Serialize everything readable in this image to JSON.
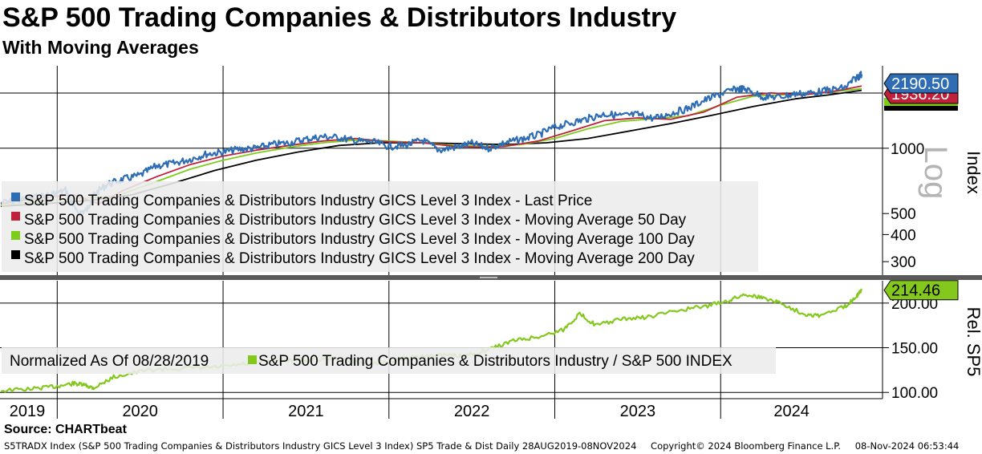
{
  "header": {
    "title": "S&P 500 Trading Companies & Distributors Industry",
    "subtitle": "With Moving Averages"
  },
  "source_label": "Source: CHARTbeat",
  "footer": {
    "ticker": "S5TRADX Index (S&P 500 Trading Companies & Distributors Industry GICS Level 3 Index) SP5 Trade & Dist  Daily 28AUG2019-08NOV2024",
    "copyright": "Copyright© 2024 Bloomberg Finance L.P.",
    "timestamp": "08-Nov-2024 06:53:44"
  },
  "colors": {
    "last_price": "#2e6db4",
    "ma50": "#c0203a",
    "ma100": "#7ccc1c",
    "ma200": "#000000",
    "relative": "#84c81e",
    "legend_bg": "#ececec"
  },
  "chart_data": [
    {
      "type": "line",
      "name": "upper-panel",
      "yscale": "log",
      "ylabel": "Index",
      "scale_label": "Log",
      "ylim": [
        260,
        2400
      ],
      "yticks": [
        300,
        400,
        500,
        1000
      ],
      "ytick_labels": [
        "300",
        "400",
        "500",
        "1000"
      ],
      "x_years": [
        "2019",
        "2020",
        "2021",
        "2022",
        "2023",
        "2024"
      ],
      "x_range": [
        2019.655,
        2024.855
      ],
      "grid": true,
      "legend": [
        "S&P 500 Trading Companies & Distributors Industry GICS Level 3 Index  - Last Price",
        "S&P 500 Trading Companies & Distributors Industry GICS Level 3 Index  - Moving Average 50 Day",
        "S&P 500 Trading Companies & Distributors Industry GICS Level 3 Index  - Moving Average 100 Day",
        "S&P 500 Trading Companies & Distributors Industry GICS Level 3 Index  - Moving Average 200 Day"
      ],
      "callouts": [
        {
          "value": 2190.5,
          "label": "2190.50",
          "series": "last_price"
        },
        {
          "value": 1936.2,
          "label": "1936.20",
          "series": "ma50"
        }
      ],
      "series": [
        {
          "name": "Last Price",
          "key": "last_price",
          "x": [
            2019.66,
            2019.8,
            2019.95,
            2020.05,
            2020.12,
            2020.18,
            2020.22,
            2020.3,
            2020.4,
            2020.5,
            2020.6,
            2020.7,
            2020.8,
            2020.9,
            2021.0,
            2021.1,
            2021.2,
            2021.3,
            2021.4,
            2021.5,
            2021.6,
            2021.7,
            2021.8,
            2021.9,
            2022.0,
            2022.1,
            2022.2,
            2022.3,
            2022.4,
            2022.5,
            2022.6,
            2022.7,
            2022.8,
            2022.9,
            2023.0,
            2023.1,
            2023.2,
            2023.3,
            2023.4,
            2023.5,
            2023.6,
            2023.7,
            2023.8,
            2023.9,
            2024.0,
            2024.1,
            2024.15,
            2024.25,
            2024.35,
            2024.45,
            2024.55,
            2024.65,
            2024.75,
            2024.82,
            2024.85
          ],
          "values": [
            560,
            580,
            610,
            640,
            500,
            520,
            610,
            680,
            720,
            750,
            830,
            850,
            890,
            940,
            960,
            990,
            1000,
            1040,
            1060,
            1100,
            1130,
            1120,
            1080,
            1070,
            1020,
            1030,
            1090,
            980,
            1010,
            1050,
            1000,
            1060,
            1100,
            1150,
            1250,
            1310,
            1370,
            1440,
            1410,
            1430,
            1370,
            1450,
            1520,
            1660,
            1780,
            1880,
            1870,
            1730,
            1720,
            1780,
            1800,
            1850,
            1900,
            2120,
            2190.5
          ]
        },
        {
          "name": "Moving Average 50 Day",
          "key": "ma50",
          "x": [
            2019.66,
            2019.9,
            2020.1,
            2020.25,
            2020.4,
            2020.6,
            2020.8,
            2021.0,
            2021.2,
            2021.4,
            2021.6,
            2021.8,
            2022.0,
            2022.2,
            2022.4,
            2022.55,
            2022.7,
            2022.9,
            2023.1,
            2023.3,
            2023.5,
            2023.7,
            2023.9,
            2024.1,
            2024.3,
            2024.5,
            2024.7,
            2024.85
          ],
          "values": [
            555,
            590,
            610,
            555,
            640,
            740,
            840,
            920,
            980,
            1030,
            1080,
            1110,
            1070,
            1060,
            1020,
            1010,
            1020,
            1080,
            1200,
            1340,
            1380,
            1360,
            1470,
            1720,
            1800,
            1760,
            1840,
            1936.2
          ]
        },
        {
          "name": "Moving Average 100 Day",
          "key": "ma100",
          "x": [
            2019.66,
            2019.95,
            2020.15,
            2020.35,
            2020.55,
            2020.8,
            2021.0,
            2021.2,
            2021.4,
            2021.6,
            2021.8,
            2022.0,
            2022.2,
            2022.4,
            2022.6,
            2022.8,
            2023.0,
            2023.2,
            2023.4,
            2023.6,
            2023.8,
            2024.0,
            2024.2,
            2024.4,
            2024.6,
            2024.85
          ],
          "values": [
            545,
            575,
            590,
            600,
            680,
            800,
            880,
            950,
            1010,
            1060,
            1090,
            1080,
            1060,
            1030,
            1020,
            1040,
            1110,
            1230,
            1330,
            1370,
            1410,
            1580,
            1740,
            1770,
            1800,
            1880
          ]
        },
        {
          "name": "Moving Average 200 Day",
          "key": "ma200",
          "x": [
            2019.66,
            2020.0,
            2020.2,
            2020.45,
            2020.7,
            2020.95,
            2021.2,
            2021.45,
            2021.7,
            2021.95,
            2022.2,
            2022.45,
            2022.7,
            2022.95,
            2023.2,
            2023.45,
            2023.7,
            2023.95,
            2024.2,
            2024.45,
            2024.65,
            2024.85
          ],
          "values": [
            540,
            560,
            575,
            610,
            690,
            790,
            880,
            960,
            1030,
            1060,
            1060,
            1050,
            1040,
            1060,
            1110,
            1200,
            1300,
            1420,
            1560,
            1690,
            1760,
            1850
          ]
        }
      ]
    },
    {
      "type": "line",
      "name": "lower-panel",
      "ylabel": "Rel. SP5",
      "ylim": [
        93,
        225
      ],
      "yticks": [
        100,
        150,
        200
      ],
      "ytick_labels": [
        "100.00",
        "150.00",
        "200.00"
      ],
      "legend_note": "Normalized As Of 08/28/2019",
      "legend": [
        "S&P 500 Trading Companies & Distributors Industry / S&P 500 INDEX"
      ],
      "callouts": [
        {
          "value": 214.46,
          "label": "214.46",
          "series": "relative"
        }
      ],
      "series": [
        {
          "name": "Relative to S&P 500",
          "key": "relative",
          "x": [
            2019.66,
            2019.85,
            2020.0,
            2020.1,
            2020.17,
            2020.22,
            2020.35,
            2020.55,
            2020.75,
            2020.95,
            2021.15,
            2021.35,
            2021.5,
            2021.65,
            2021.8,
            2021.95,
            2022.1,
            2022.3,
            2022.45,
            2022.6,
            2022.75,
            2022.9,
            2023.05,
            2023.15,
            2023.25,
            2023.4,
            2023.55,
            2023.75,
            2023.9,
            2024.05,
            2024.15,
            2024.25,
            2024.35,
            2024.5,
            2024.6,
            2024.75,
            2024.82,
            2024.85
          ],
          "values": [
            102,
            104,
            107,
            110,
            108,
            105,
            118,
            125,
            127,
            128,
            132,
            137,
            136,
            138,
            134,
            132,
            139,
            142,
            140,
            148,
            158,
            162,
            170,
            188,
            175,
            182,
            184,
            192,
            196,
            203,
            210,
            206,
            201,
            188,
            186,
            196,
            208,
            214.46
          ]
        }
      ]
    }
  ]
}
